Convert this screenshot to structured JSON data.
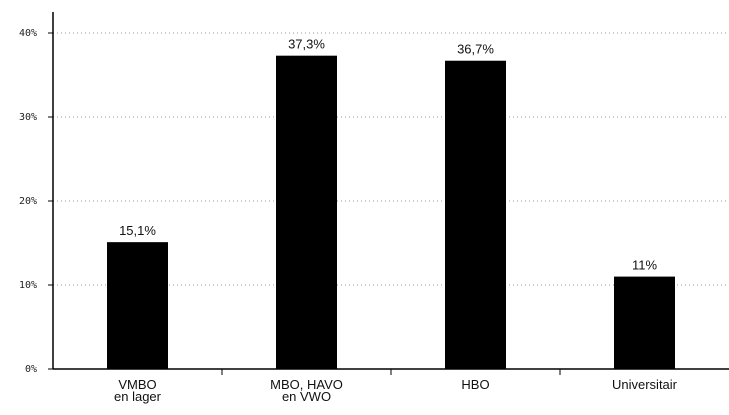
{
  "chart_data": {
    "type": "bar",
    "title": "",
    "xlabel": "",
    "ylabel": "",
    "categories": [
      [
        "VMBO",
        "en lager"
      ],
      [
        "MBO, HAVO",
        "en VWO"
      ],
      [
        "HBO"
      ],
      [
        "Universitair"
      ]
    ],
    "values": [
      15.1,
      37.3,
      36.7,
      11
    ],
    "data_labels": [
      "15,1%",
      "37,3%",
      "36,7%",
      "11%"
    ],
    "ylim": [
      0,
      40
    ],
    "yticks": [
      0,
      10,
      20,
      30,
      40
    ],
    "ytick_labels": [
      "0%",
      "10%",
      "20%",
      "30%",
      "40%"
    ],
    "grid": "horizontal dotted",
    "bar_color": "#000000"
  }
}
